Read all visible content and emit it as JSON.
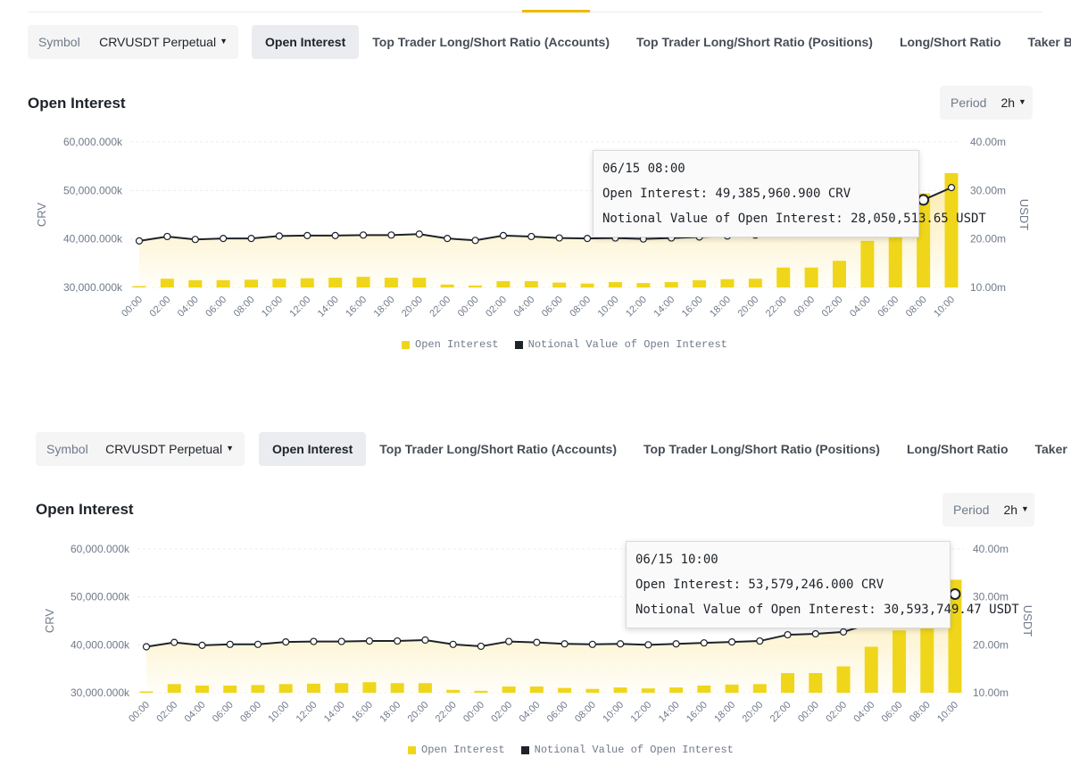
{
  "toolbar": {
    "symbol_label": "Symbol",
    "symbol_value": "CRVUSDT Perpetual",
    "tabs": [
      "Open Interest",
      "Top Trader Long/Short Ratio (Accounts)",
      "Top Trader Long/Short Ratio (Positions)",
      "Long/Short Ratio",
      "Taker Buy/Sel"
    ]
  },
  "section_title": "Open Interest",
  "period": {
    "label": "Period",
    "value": "2h"
  },
  "legend": {
    "bar": "Open Interest",
    "line": "Notional Value of Open Interest"
  },
  "colors": {
    "bar": "#f0d61a",
    "line": "#1e2329",
    "area_top": "#fbe7a1",
    "accent": "#f0b90b"
  },
  "chart_data": [
    {
      "type": "bar",
      "title": "",
      "ylabel": "CRV",
      "y2label": "USDT",
      "ylim": [
        30000000,
        60000000
      ],
      "y2lim": [
        10,
        40
      ],
      "yticks": [
        "60,000.000k",
        "50,000.000k",
        "40,000.000k",
        "30,000.000k"
      ],
      "y2ticks": [
        "40.00m",
        "30.00m",
        "20.00m",
        "10.00m"
      ],
      "categories": [
        "00:00",
        "02:00",
        "04:00",
        "06:00",
        "08:00",
        "10:00",
        "12:00",
        "14:00",
        "16:00",
        "18:00",
        "20:00",
        "22:00",
        "00:00",
        "02:00",
        "04:00",
        "06:00",
        "08:00",
        "10:00",
        "12:00",
        "14:00",
        "16:00",
        "18:00",
        "20:00",
        "22:00",
        "00:00",
        "02:00",
        "04:00",
        "06:00",
        "08:00",
        "10:00"
      ],
      "series": [
        {
          "name": "Open Interest",
          "axis": "left",
          "values": [
            30200000,
            31800000,
            31500000,
            31500000,
            31600000,
            31800000,
            31900000,
            32000000,
            32200000,
            32000000,
            32000000,
            30600000,
            30400000,
            31300000,
            31300000,
            31000000,
            30800000,
            31100000,
            30900000,
            31100000,
            31500000,
            31700000,
            31800000,
            34100000,
            34100000,
            35500000,
            39600000,
            43000000,
            49385960.9,
            53579246
          ],
          "notes": ""
        },
        {
          "name": "Notional Value of Open Interest",
          "axis": "right",
          "values": [
            19.6,
            20.5,
            19.9,
            20.1,
            20.1,
            20.6,
            20.7,
            20.7,
            20.8,
            20.8,
            21.0,
            20.1,
            19.7,
            20.7,
            20.5,
            20.2,
            20.1,
            20.2,
            20.0,
            20.2,
            20.4,
            20.6,
            20.8,
            22.1,
            22.3,
            22.7,
            24.5,
            26.0,
            28.05,
            30.59
          ]
        }
      ],
      "tooltip": {
        "time": "06/15 08:00",
        "oi": "Open Interest: 49,385,960.900 CRV",
        "notional": "Notional Value of Open Interest: 28,050,513.65 USDT",
        "index": 28
      }
    },
    {
      "type": "bar",
      "title": "",
      "ylabel": "CRV",
      "y2label": "USDT",
      "ylim": [
        30000000,
        60000000
      ],
      "y2lim": [
        10,
        40
      ],
      "yticks": [
        "60,000.000k",
        "50,000.000k",
        "40,000.000k",
        "30,000.000k"
      ],
      "y2ticks": [
        "40.00m",
        "30.00m",
        "20.00m",
        "10.00m"
      ],
      "categories": [
        "00:00",
        "02:00",
        "04:00",
        "06:00",
        "08:00",
        "10:00",
        "12:00",
        "14:00",
        "16:00",
        "18:00",
        "20:00",
        "22:00",
        "00:00",
        "02:00",
        "04:00",
        "06:00",
        "08:00",
        "10:00",
        "12:00",
        "14:00",
        "16:00",
        "18:00",
        "20:00",
        "22:00",
        "00:00",
        "02:00",
        "04:00",
        "06:00",
        "08:00",
        "10:00"
      ],
      "series": [
        {
          "name": "Open Interest",
          "axis": "left",
          "values": [
            30200000,
            31800000,
            31500000,
            31500000,
            31600000,
            31800000,
            31900000,
            32000000,
            32200000,
            32000000,
            32000000,
            30600000,
            30400000,
            31300000,
            31300000,
            31000000,
            30800000,
            31100000,
            30900000,
            31100000,
            31500000,
            31700000,
            31800000,
            34100000,
            34100000,
            35500000,
            39600000,
            43000000,
            49385960.9,
            53579246
          ]
        },
        {
          "name": "Notional Value of Open Interest",
          "axis": "right",
          "values": [
            19.6,
            20.5,
            19.9,
            20.1,
            20.1,
            20.6,
            20.7,
            20.7,
            20.8,
            20.8,
            21.0,
            20.1,
            19.7,
            20.7,
            20.5,
            20.2,
            20.1,
            20.2,
            20.0,
            20.2,
            20.4,
            20.6,
            20.8,
            22.1,
            22.3,
            22.7,
            24.5,
            26.0,
            28.05,
            30.59
          ]
        }
      ],
      "tooltip": {
        "time": "06/15 10:00",
        "oi": "Open Interest: 53,579,246.000 CRV",
        "notional": "Notional Value of Open Interest: 30,593,749.47 USDT",
        "index": 29
      }
    }
  ]
}
